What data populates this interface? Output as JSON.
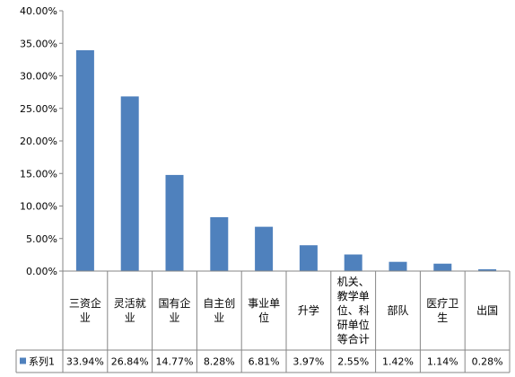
{
  "chart_data": {
    "type": "bar",
    "categories": [
      [
        "三资企",
        "业"
      ],
      [
        "灵活就",
        "业"
      ],
      [
        "国有企",
        "业"
      ],
      [
        "自主创",
        "业"
      ],
      [
        "事业单",
        "位"
      ],
      [
        "升学"
      ],
      [
        "机关、",
        "教学单",
        "位、科",
        "研单位",
        "等合计"
      ],
      [
        "部队"
      ],
      [
        "医疗卫",
        "生"
      ],
      [
        "出国"
      ]
    ],
    "series": [
      {
        "name": "系列1",
        "values": [
          33.94,
          26.84,
          14.77,
          8.28,
          6.81,
          3.97,
          2.55,
          1.42,
          1.14,
          0.28
        ],
        "labels": [
          "33.94%",
          "26.84%",
          "14.77%",
          "8.28%",
          "6.81%",
          "3.97%",
          "2.55%",
          "1.42%",
          "1.14%",
          "0.28%"
        ],
        "color": "#4f81bd"
      }
    ],
    "ylim": [
      0,
      40
    ],
    "yticks": [
      "0.00%",
      "5.00%",
      "10.00%",
      "15.00%",
      "20.00%",
      "25.00%",
      "30.00%",
      "35.00%",
      "40.00%"
    ],
    "grid": false,
    "data_table": true
  }
}
